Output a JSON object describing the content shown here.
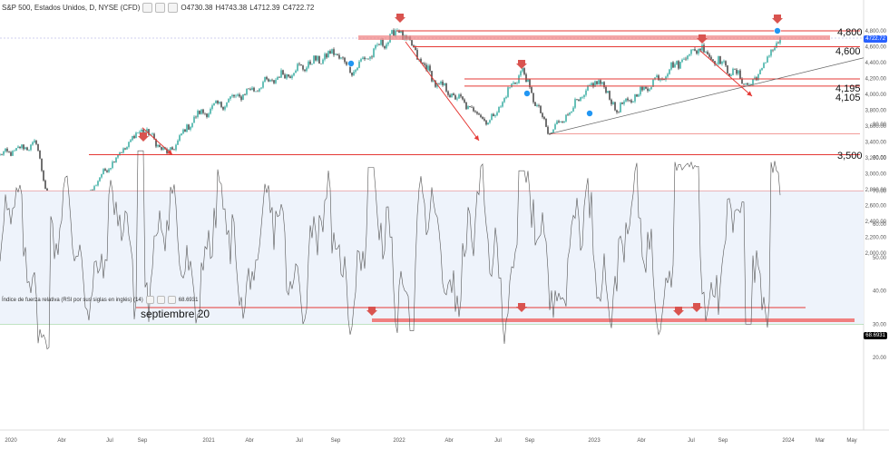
{
  "header": {
    "symbol": "S&P 500, Estados Unidos, D, NYSE (CFD)",
    "open": "O4730.38",
    "high": "H4743.38",
    "low": "L4712.39",
    "close": "C4722.72"
  },
  "rsi_header": {
    "label": "Índice de fuerza relativa (RSI por sus siglas en inglés) (14)",
    "value": "68.6931"
  },
  "colors": {
    "up": "#26a69a",
    "down": "#333333",
    "line": "#e53935",
    "band": "#f08080",
    "rsi_fill": "#eef3fb",
    "price_badge": "#2962ff",
    "rsi_badge": "#000000"
  },
  "chart_data": [
    {
      "type": "line",
      "title": "S&P 500, Estados Unidos, D, NYSE (CFD)",
      "x": [
        "2020-01",
        "2020-02",
        "2020-03-23",
        "2020-06",
        "2020-09",
        "2020-10",
        "2020-12",
        "2021-04",
        "2021-09",
        "2021-10",
        "2022-01-04",
        "2022-03",
        "2022-06-16",
        "2022-08-16",
        "2022-10-12",
        "2023-02",
        "2023-03",
        "2023-07-31",
        "2023-10-27",
        "2023-12-28"
      ],
      "series": [
        {
          "values": [
            3230,
            3380,
            2200,
            3100,
            3580,
            3240,
            3720,
            4180,
            4530,
            4300,
            4818,
            4150,
            3650,
            4310,
            3500,
            4195,
            3800,
            4600,
            4105,
            4722.72
          ]
        }
      ],
      "ylim": [
        2000,
        5000
      ],
      "y_ticks": [
        "4,800.00",
        "4,600.00",
        "4,400.00",
        "4,200.00",
        "4,000.00",
        "3,800.00",
        "3,600.00",
        "3,400.00",
        "3,200.00",
        "3,000.00",
        "2,800.00",
        "2,600.00",
        "2,400.00",
        "2,200.00",
        "2,000.00"
      ],
      "x_ticks": [
        "2020",
        "Abr",
        "Jul",
        "Sep",
        "2021",
        "Abr",
        "Jul",
        "Sep",
        "2022",
        "Abr",
        "Jul",
        "Sep",
        "2023",
        "Abr",
        "Jul",
        "Sep",
        "2024",
        "Mar",
        "May"
      ],
      "last_value": "4722.72",
      "levels": [
        {
          "value": 4800,
          "label": "4,800"
        },
        {
          "value": 4600,
          "label": "4,600"
        },
        {
          "value": 4195,
          "label": "4,195"
        },
        {
          "value": 4105,
          "label": "4,105"
        },
        {
          "value": 3500,
          "label": "3,500"
        },
        {
          "value": 3240,
          "label": ""
        }
      ]
    },
    {
      "type": "line",
      "title": "Índice de fuerza relativa (RSI por sus siglas en inglés) (14)",
      "ylim": [
        20,
        90
      ],
      "y_ticks": [
        "90.00",
        "80.00",
        "70.00",
        "60.00",
        "50.00",
        "40.00",
        "30.00",
        "20.00"
      ],
      "bands": [
        30,
        70
      ],
      "last_value": "68.6931",
      "annotation": "septiembre 20"
    }
  ]
}
